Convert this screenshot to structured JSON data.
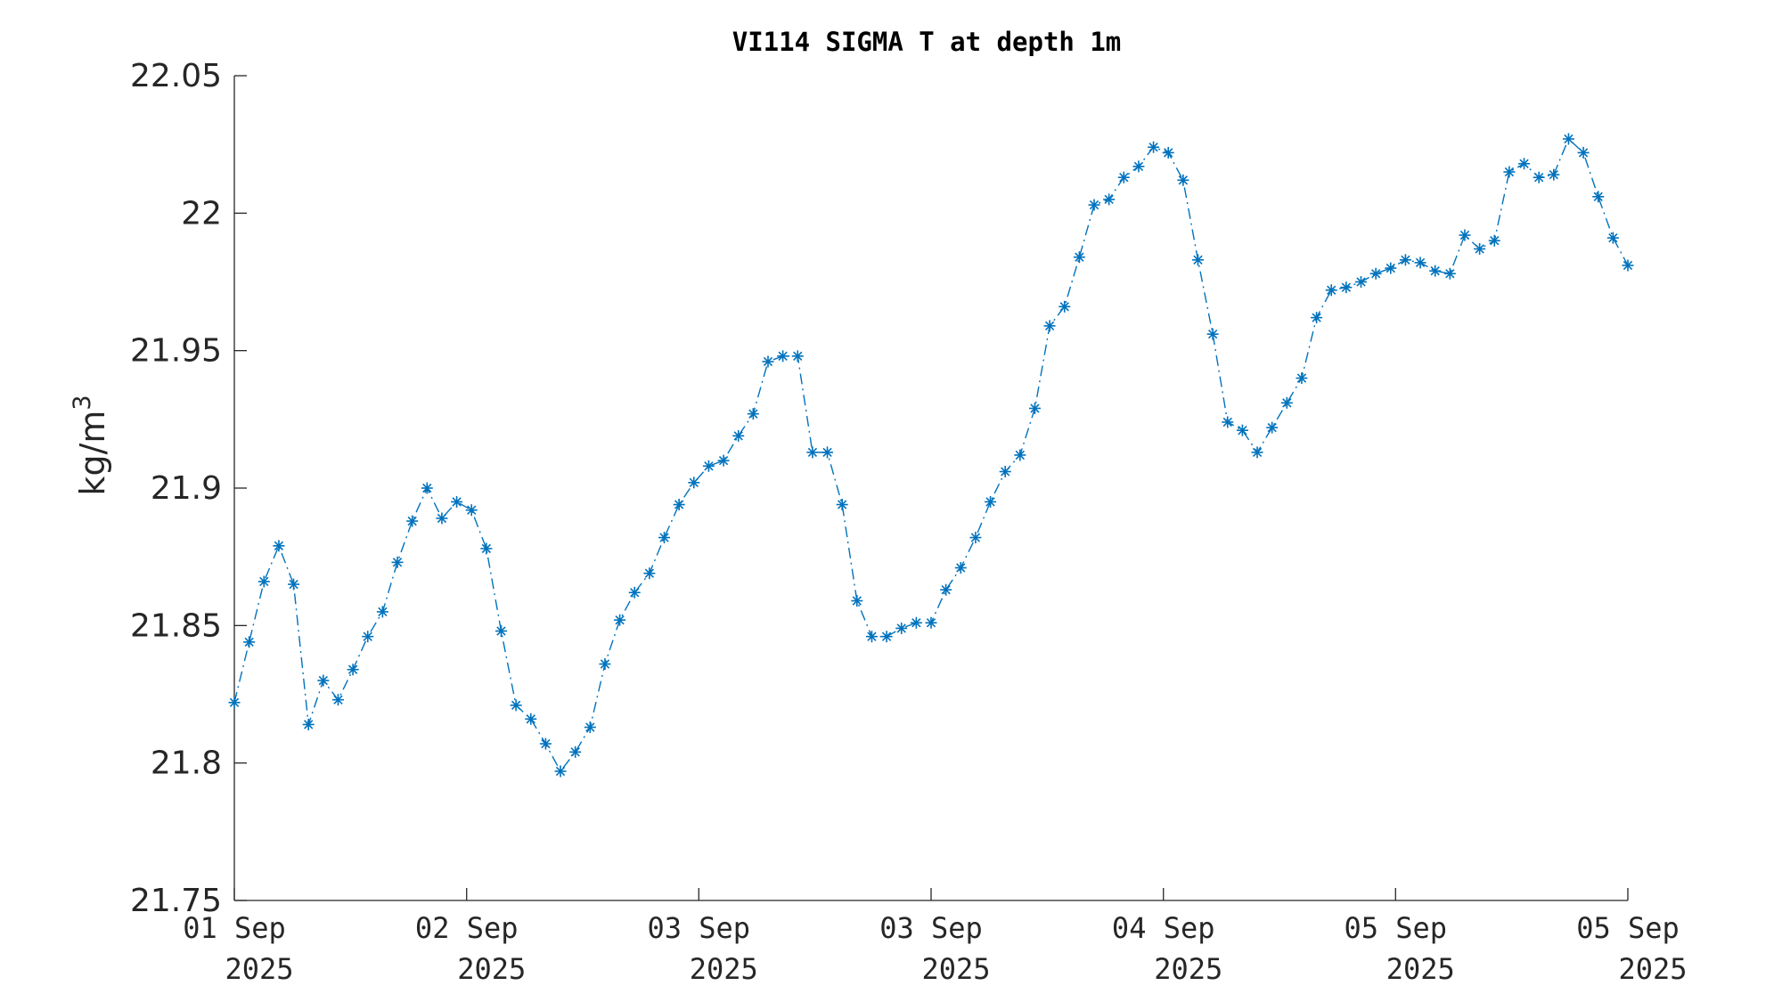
{
  "chart_data": {
    "type": "line",
    "title": "VI114 SIGMA T at depth 1m",
    "xlabel": "",
    "ylabel": "kg/m",
    "ylabel_superscript": "3",
    "ylim": [
      21.75,
      22.05
    ],
    "yticks": [
      {
        "value": 21.75,
        "label": "21.75"
      },
      {
        "value": 21.8,
        "label": "21.8"
      },
      {
        "value": 21.85,
        "label": "21.85"
      },
      {
        "value": 21.9,
        "label": "21.9"
      },
      {
        "value": 21.95,
        "label": "21.95"
      },
      {
        "value": 22.0,
        "label": "22"
      },
      {
        "value": 22.05,
        "label": "22.05"
      }
    ],
    "xlim": [
      0,
      94
    ],
    "xticks": [
      {
        "value": 0,
        "day": "01 Sep",
        "year": "2025"
      },
      {
        "value": 15.67,
        "day": "02 Sep",
        "year": "2025"
      },
      {
        "value": 31.33,
        "day": "03 Sep",
        "year": "2025"
      },
      {
        "value": 47,
        "day": "03 Sep",
        "year": "2025"
      },
      {
        "value": 62.67,
        "day": "04 Sep",
        "year": "2025"
      },
      {
        "value": 78.33,
        "day": "05 Sep",
        "year": "2025"
      },
      {
        "value": 94,
        "day": "05 Sep",
        "year": "2025"
      }
    ],
    "grid": false,
    "series": [
      {
        "color": "#0072BD",
        "marker": "asterisk",
        "line_style": "dash-dot",
        "values": [
          21.822,
          21.844,
          21.866,
          21.879,
          21.865,
          21.814,
          21.83,
          21.823,
          21.834,
          21.846,
          21.855,
          21.873,
          21.888,
          21.9,
          21.889,
          21.895,
          21.892,
          21.878,
          21.848,
          21.821,
          21.816,
          21.807,
          21.797,
          21.804,
          21.813,
          21.836,
          21.852,
          21.862,
          21.869,
          21.882,
          21.894,
          21.902,
          21.908,
          21.91,
          21.919,
          21.927,
          21.946,
          21.948,
          21.948,
          21.913,
          21.913,
          21.894,
          21.859,
          21.846,
          21.846,
          21.849,
          21.851,
          21.851,
          21.863,
          21.871,
          21.882,
          21.895,
          21.906,
          21.912,
          21.929,
          21.959,
          21.966,
          21.984,
          22.003,
          22.005,
          22.013,
          22.017,
          22.024,
          22.022,
          22.012,
          21.983,
          21.956,
          21.924,
          21.921,
          21.913,
          21.922,
          21.931,
          21.94,
          21.962,
          21.972,
          21.973,
          21.975,
          21.978,
          21.98,
          21.983,
          21.982,
          21.979,
          21.978,
          21.992,
          21.987,
          21.99,
          22.015,
          22.018,
          22.013,
          22.014,
          22.027,
          22.022,
          22.006,
          21.991,
          21.981
        ]
      }
    ]
  }
}
